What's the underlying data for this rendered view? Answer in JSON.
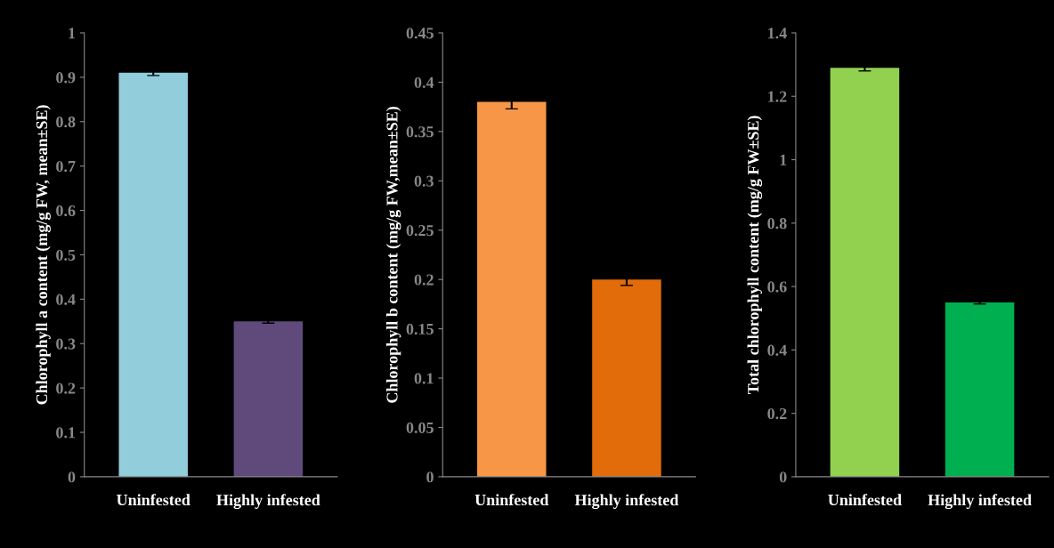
{
  "chart_data": [
    {
      "type": "bar",
      "categories": [
        "Uninfested",
        "Highly infested"
      ],
      "values": [
        0.91,
        0.35
      ],
      "colors": [
        "#92cddc",
        "#604a7b"
      ],
      "errors": [
        0.006,
        0.004
      ],
      "ylabel": "Chlorophyll a content (mg/g FW, mean±SE)",
      "ylim": [
        0,
        1
      ],
      "yticks": [
        0,
        0.1,
        0.2,
        0.3,
        0.4,
        0.5,
        0.6,
        0.7,
        0.8,
        0.9,
        1
      ]
    },
    {
      "type": "bar",
      "categories": [
        "Uninfested",
        "Highly infested"
      ],
      "values": [
        0.38,
        0.2
      ],
      "colors": [
        "#f79646",
        "#e36c0a"
      ],
      "errors": [
        0.007,
        0.006
      ],
      "ylabel": "Chlorophyll b content (mg/g FW,mean±SE)",
      "ylim": [
        0,
        0.45
      ],
      "yticks": [
        0,
        0.05,
        0.1,
        0.15,
        0.2,
        0.25,
        0.3,
        0.35,
        0.4,
        0.45
      ]
    },
    {
      "type": "bar",
      "categories": [
        "Uninfested",
        "Highly infested"
      ],
      "values": [
        1.29,
        0.55
      ],
      "colors": [
        "#92d050",
        "#00b050"
      ],
      "errors": [
        0.01,
        0.005
      ],
      "ylabel": "Total chlorophyll content (mg/g FW±SE)",
      "ylim": [
        0,
        1.4
      ],
      "yticks": [
        0,
        0.2,
        0.4,
        0.6,
        0.8,
        1,
        1.2,
        1.4
      ]
    }
  ]
}
